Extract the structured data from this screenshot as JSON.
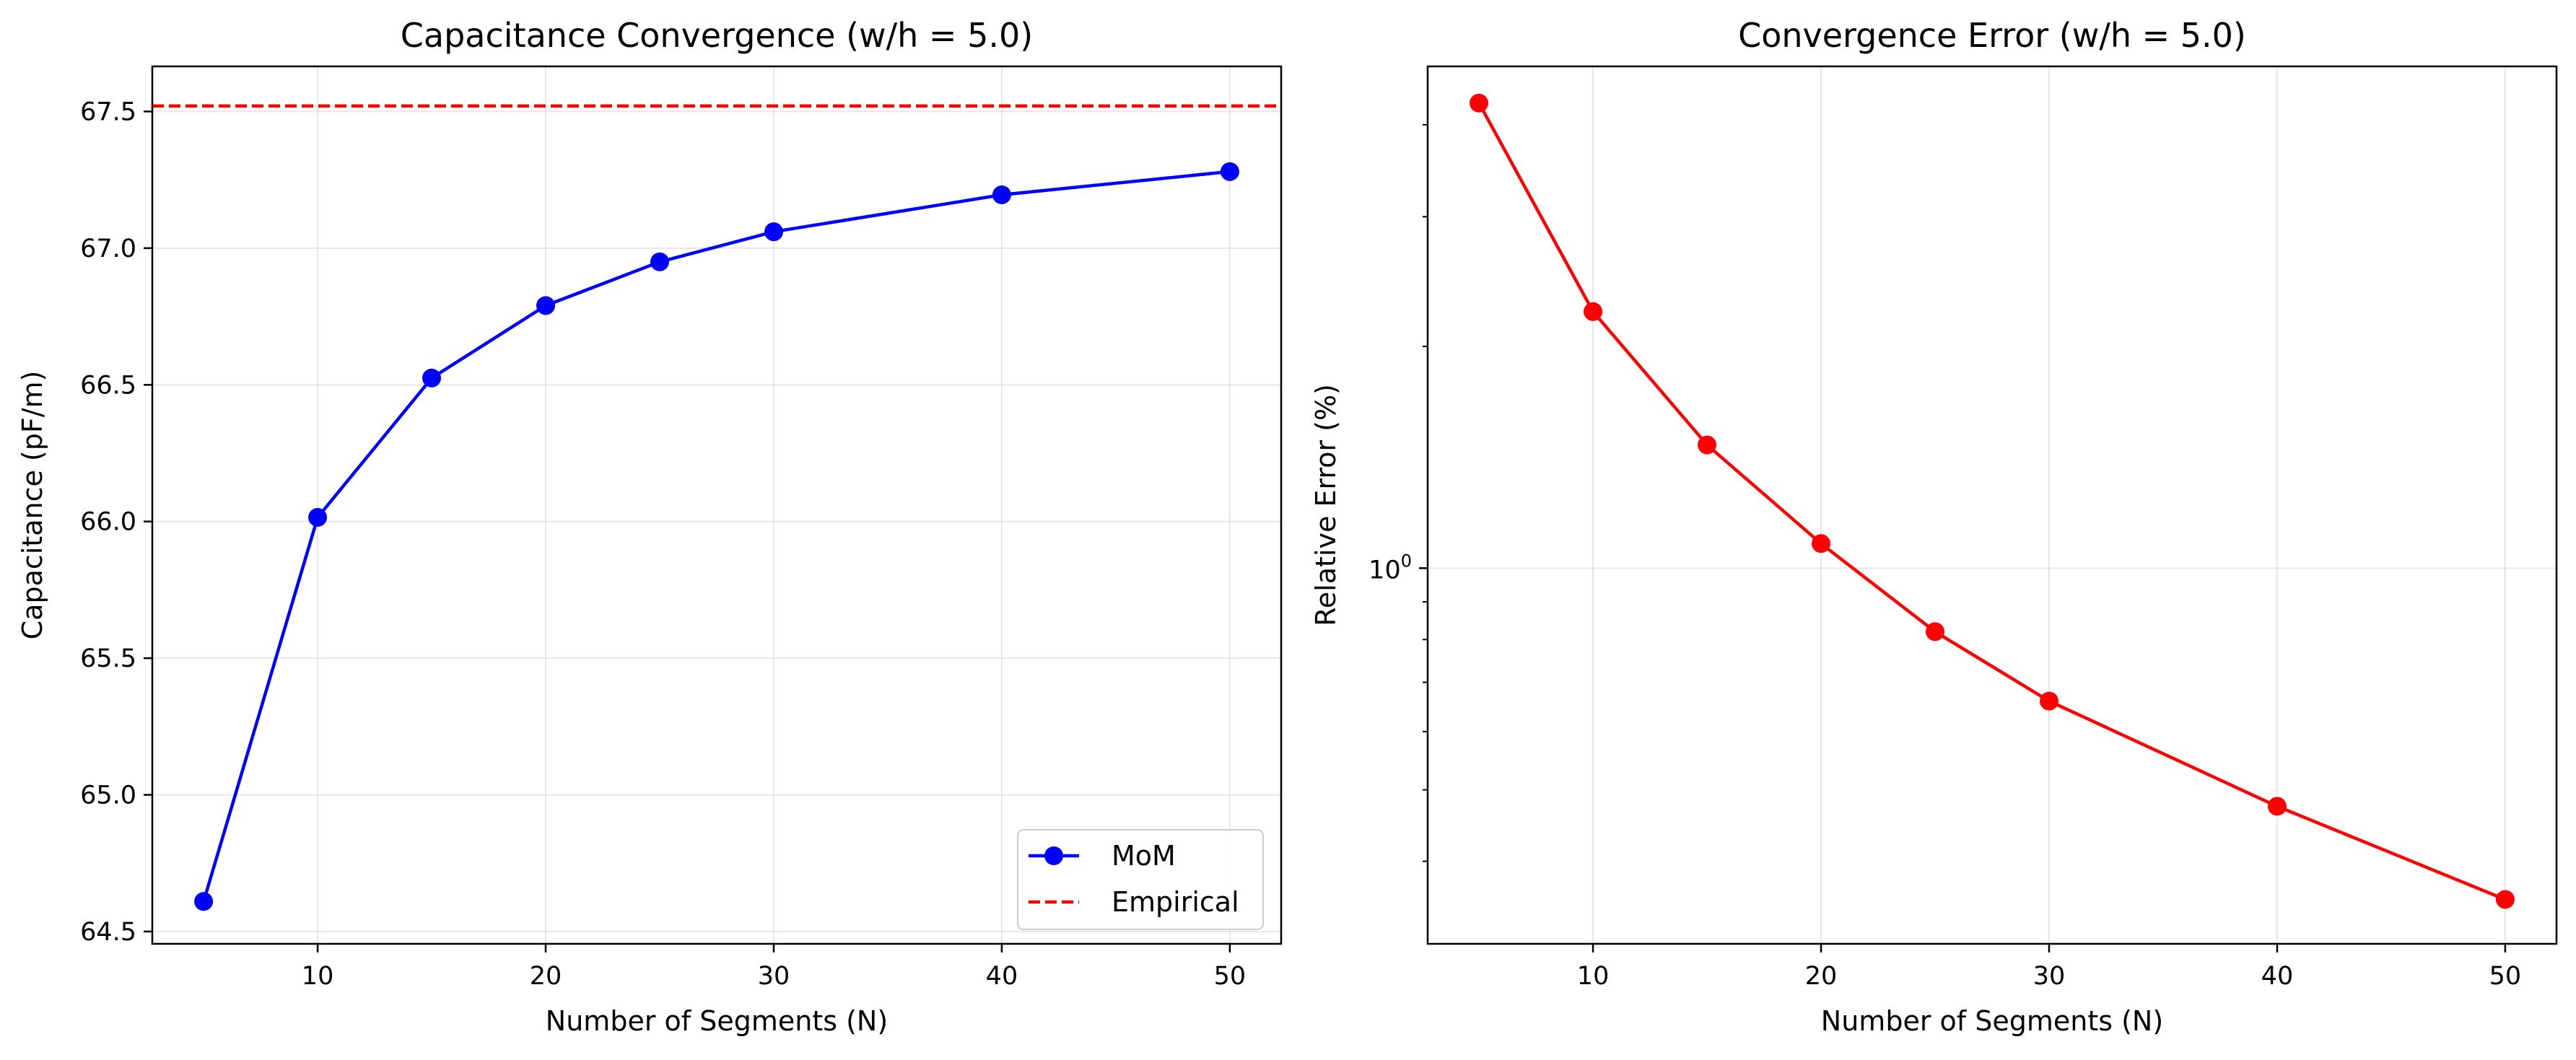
{
  "chart_data": [
    {
      "type": "line",
      "title": "Capacitance Convergence (w/h = 5.0)",
      "xlabel": "Number of Segments (N)",
      "ylabel": "Capacitance (pF/m)",
      "xlim": [
        2.75,
        52.25
      ],
      "ylim": [
        64.455,
        67.665
      ],
      "yscale": "linear",
      "grid": true,
      "legend_position": "lower right",
      "xticks": [
        10,
        20,
        30,
        40,
        50
      ],
      "xtick_labels": [
        "10",
        "20",
        "30",
        "40",
        "50"
      ],
      "yticks": [
        64.5,
        65.0,
        65.5,
        66.0,
        66.5,
        67.0,
        67.5
      ],
      "ytick_labels": [
        "64.5",
        "65.0",
        "65.5",
        "66.0",
        "66.5",
        "67.0",
        "67.5"
      ],
      "series": [
        {
          "name": "MoM",
          "style": "line-marker",
          "color": "#0000ff",
          "x": [
            5,
            10,
            15,
            20,
            25,
            30,
            40,
            50
          ],
          "y": [
            64.61,
            66.015,
            66.525,
            66.79,
            66.95,
            67.06,
            67.195,
            67.28
          ]
        },
        {
          "name": "Empirical",
          "style": "dashed-hline",
          "color": "#ff0000",
          "y": 67.52
        }
      ]
    },
    {
      "type": "line",
      "title": "Convergence Error (w/h = 5.0)",
      "xlabel": "Number of Segments (N)",
      "ylabel": "Relative Error (%)",
      "xlim": [
        2.75,
        52.25
      ],
      "ylim": [
        0.309,
        4.8
      ],
      "yscale": "log",
      "grid": true,
      "xticks": [
        10,
        20,
        30,
        40,
        50
      ],
      "xtick_labels": [
        "10",
        "20",
        "30",
        "40",
        "50"
      ],
      "yticks_major": [
        1
      ],
      "ytick_major_labels": [
        "10",
        "0"
      ],
      "yticks_minor": [
        0.4,
        0.5,
        0.6,
        0.7,
        0.8,
        0.9,
        2,
        3,
        4
      ],
      "series": [
        {
          "style": "line-marker",
          "color": "#ff0000",
          "x": [
            5,
            10,
            15,
            20,
            25,
            30,
            40,
            50
          ],
          "y": [
            4.28,
            2.23,
            1.47,
            1.08,
            0.82,
            0.66,
            0.475,
            0.355
          ]
        }
      ]
    }
  ]
}
